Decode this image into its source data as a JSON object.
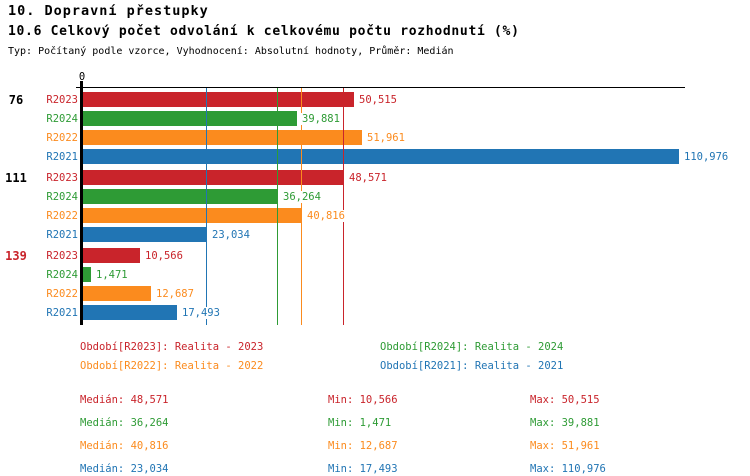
{
  "header": {
    "title": "10. Dopravní přestupky",
    "subtitle": "10.6 Celkový počet odvolání k celkovému počtu rozhodnutí (%)",
    "meta": "Typ: Počítaný podle vzorce, Vyhodnocení: Absolutní hodnoty, Průměr: Medián"
  },
  "chart_data": {
    "type": "bar",
    "orientation": "horizontal",
    "unit": "%",
    "xlim": [
      0,
      112.3
    ],
    "axis_zero_label": "0",
    "grid": "median-lines-only",
    "legend_position": "below",
    "series_order": [
      "R2023",
      "R2024",
      "R2022",
      "R2021"
    ],
    "series_colors": {
      "R2023": "#C9242B",
      "R2024": "#2E9B35",
      "R2022": "#FB8B1E",
      "R2021": "#2175B4"
    },
    "groups": [
      {
        "label": "76",
        "label_color": "#000000",
        "bars": [
          {
            "series": "R2023",
            "value": 50.515,
            "display": "50,515"
          },
          {
            "series": "R2024",
            "value": 39.881,
            "display": "39,881"
          },
          {
            "series": "R2022",
            "value": 51.961,
            "display": "51,961"
          },
          {
            "series": "R2021",
            "value": 110.976,
            "display": "110,976"
          }
        ]
      },
      {
        "label": "111",
        "label_color": "#000000",
        "bars": [
          {
            "series": "R2023",
            "value": 48.571,
            "display": "48,571"
          },
          {
            "series": "R2024",
            "value": 36.264,
            "display": "36,264"
          },
          {
            "series": "R2022",
            "value": 40.816,
            "display": "40,816"
          },
          {
            "series": "R2021",
            "value": 23.034,
            "display": "23,034"
          }
        ]
      },
      {
        "label": "139",
        "label_color": "#C9242B",
        "bars": [
          {
            "series": "R2023",
            "value": 10.566,
            "display": "10,566"
          },
          {
            "series": "R2024",
            "value": 1.471,
            "display": "1,471"
          },
          {
            "series": "R2022",
            "value": 12.687,
            "display": "12,687"
          },
          {
            "series": "R2021",
            "value": 17.493,
            "display": "17,493"
          }
        ]
      }
    ],
    "median_lines": [
      {
        "series": "R2023",
        "value": 48.571
      },
      {
        "series": "R2024",
        "value": 36.264
      },
      {
        "series": "R2022",
        "value": 40.816
      },
      {
        "series": "R2021",
        "value": 23.034
      }
    ]
  },
  "legend": {
    "items": [
      {
        "series": "R2023",
        "text": "Období[R2023]: Realita - 2023",
        "color": "#C9242B"
      },
      {
        "series": "R2024",
        "text": "Období[R2024]: Realita - 2024",
        "color": "#2E9B35"
      },
      {
        "series": "R2022",
        "text": "Období[R2022]: Realita - 2022",
        "color": "#FB8B1E"
      },
      {
        "series": "R2021",
        "text": "Období[R2021]: Realita - 2021",
        "color": "#2175B4"
      }
    ]
  },
  "stats": {
    "rows": [
      {
        "series": "R2023",
        "color": "#C9242B",
        "median": "Medián: 48,571",
        "min": "Min: 10,566",
        "max": "Max: 50,515"
      },
      {
        "series": "R2024",
        "color": "#2E9B35",
        "median": "Medián: 36,264",
        "min": "Min: 1,471",
        "max": "Max: 39,881"
      },
      {
        "series": "R2022",
        "color": "#FB8B1E",
        "median": "Medián: 40,816",
        "min": "Min: 12,687",
        "max": "Max: 51,961"
      },
      {
        "series": "R2021",
        "color": "#2175B4",
        "median": "Medián: 23,034",
        "min": "Min: 17,493",
        "max": "Max: 110,976"
      }
    ]
  }
}
